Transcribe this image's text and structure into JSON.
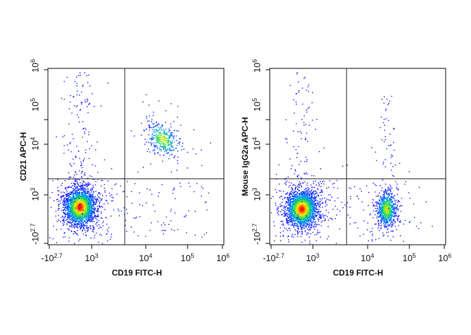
{
  "chart_data": [
    {
      "type": "scatter",
      "xlabel": "CD19 FITC-H",
      "ylabel": "CD21 APC-H",
      "x_scale": "biexponential",
      "y_scale": "biexponential",
      "xlim": [
        "-10^2.7",
        "10^6"
      ],
      "ylim": [
        "-10^2.7",
        "10^6"
      ],
      "x_ticks": [
        {
          "base": "-10",
          "exp": "2.7"
        },
        {
          "base": "10",
          "exp": "3"
        },
        {
          "base": "10",
          "exp": "4"
        },
        {
          "base": "10",
          "exp": "5"
        },
        {
          "base": "10",
          "exp": "6"
        }
      ],
      "y_ticks": [
        {
          "base": "-10",
          "exp": "2.7"
        },
        {
          "base": "10",
          "exp": "3"
        },
        {
          "base": "10",
          "exp": "4"
        },
        {
          "base": "10",
          "exp": "5"
        },
        {
          "base": "10",
          "exp": "6"
        }
      ],
      "gates": {
        "x_threshold": 4000,
        "y_threshold": 2500
      },
      "populations": [
        {
          "cx": 350,
          "cy": 600,
          "count": 2600
        },
        {
          "cx": 25000,
          "cy": 15000,
          "count": 420
        }
      ]
    },
    {
      "type": "scatter",
      "xlabel": "CD19 FITC-H",
      "ylabel": "Mouse IgG2a APC-H",
      "x_scale": "biexponential",
      "y_scale": "biexponential",
      "xlim": [
        "-10^2.7",
        "10^6"
      ],
      "ylim": [
        "-10^2.7",
        "10^6"
      ],
      "x_ticks": [
        {
          "base": "-10",
          "exp": "2.7"
        },
        {
          "base": "10",
          "exp": "3"
        },
        {
          "base": "10",
          "exp": "4"
        },
        {
          "base": "10",
          "exp": "5"
        },
        {
          "base": "10",
          "exp": "6"
        }
      ],
      "y_ticks": [
        {
          "base": "-10",
          "exp": "2.7"
        },
        {
          "base": "10",
          "exp": "3"
        },
        {
          "base": "10",
          "exp": "4"
        },
        {
          "base": "10",
          "exp": "5"
        },
        {
          "base": "10",
          "exp": "6"
        }
      ],
      "gates": {
        "x_threshold": 4000,
        "y_threshold": 2500
      },
      "populations": [
        {
          "cx": 350,
          "cy": 500,
          "count": 2500
        },
        {
          "cx": 28000,
          "cy": 500,
          "count": 900
        }
      ]
    }
  ],
  "colors": {
    "density_low": "#0000ff",
    "density_mid": "#00cc66",
    "density_high": "#ffff00",
    "density_max": "#ff0000",
    "frame": "#000000",
    "gate": "#222222"
  }
}
